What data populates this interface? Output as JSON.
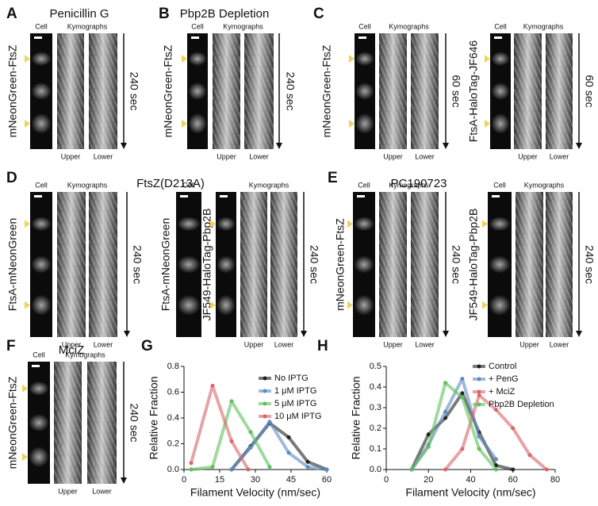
{
  "panels": [
    {
      "letter": "A",
      "title": "Penicillin G",
      "subpanels": [
        {
          "labels": [
            "mNeonGreen-FtsZ"
          ],
          "cell": "Cell",
          "kymographs": "Kymographs",
          "upper": "Upper",
          "lower": "Lower",
          "time": "240 sec"
        }
      ]
    },
    {
      "letter": "B",
      "title": "Pbp2B Depletion",
      "subpanels": [
        {
          "labels": [
            "mNeonGreen-FtsZ"
          ],
          "cell": "Cell",
          "kymographs": "Kymographs",
          "upper": "Upper",
          "lower": "Lower",
          "time": "240 sec"
        }
      ]
    },
    {
      "letter": "C",
      "subpanels": [
        {
          "labels": [
            "mNeonGreen-FtsZ"
          ],
          "cell": "Cell",
          "kymographs": "Kymographs",
          "upper": "Upper",
          "lower": "Lower",
          "time": "60 sec"
        },
        {
          "labels": [
            "FtsA-HaloTag-JF646"
          ],
          "cell": "Cell",
          "kymographs": "Kymographs",
          "upper": "Upper",
          "lower": "Lower",
          "time": "60 sec"
        }
      ]
    },
    {
      "letter": "D",
      "title": "FtsZ(D213A)",
      "subpanels": [
        {
          "labels": [
            "FtsA-mNeonGreen"
          ],
          "cell": "Cell",
          "kymographs": "Kymographs",
          "upper": "Upper",
          "lower": "Lower",
          "time": "240 sec"
        },
        {
          "labels": [
            "FtsA-mNeonGreen",
            "JF549-HaloTag-Pbp2B"
          ],
          "cell": "Cell",
          "kymographs": "Kymographs",
          "upper": "Upper",
          "lower": "Lower",
          "time": "240 sec"
        }
      ]
    },
    {
      "letter": "E",
      "title": "PC190723",
      "subpanels": [
        {
          "labels": [
            "mNeonGreen-FtsZ"
          ],
          "cell": "Cell",
          "kymographs": "Kymographs",
          "upper": "Upper",
          "lower": "Lower",
          "time": "240 sec"
        },
        {
          "labels": [
            "JF549-HaloTag-Pbp2B"
          ],
          "cell": "Cell",
          "kymographs": "Kymographs",
          "upper": "Upper",
          "lower": "Lower",
          "time": "240 sec"
        }
      ]
    },
    {
      "letter": "F",
      "title": "MciZ",
      "subpanels": [
        {
          "labels": [
            "mNeonGreen-FtsZ"
          ],
          "cell": "Cell",
          "kymographs": "Kymographs",
          "upper": "Upper",
          "lower": "Lower",
          "time": "240 sec"
        }
      ]
    }
  ],
  "chart_data": [
    {
      "type": "line",
      "panel_letter": "G",
      "xlabel": "Filament Velocity (nm/sec)",
      "ylabel": "Relative Fraction",
      "xlim": [
        0,
        60
      ],
      "xticks": [
        0,
        15,
        30,
        45,
        60
      ],
      "ylim": [
        0,
        0.8
      ],
      "yticks": [
        {
          "value": 0,
          "label": "0.0"
        },
        0.2,
        0.4,
        0.6,
        0.8
      ],
      "series": [
        {
          "name": "No IPTG",
          "color": "#222222",
          "x": [
            20,
            28,
            36,
            44,
            52,
            60
          ],
          "values": [
            0,
            0.18,
            0.36,
            0.25,
            0.06,
            0
          ]
        },
        {
          "name": "1 μM IPTG",
          "color": "#5b8bc4",
          "x": [
            20,
            28,
            36,
            44,
            52,
            60
          ],
          "values": [
            0,
            0.17,
            0.37,
            0.13,
            0.02,
            0
          ]
        },
        {
          "name": "5 μM IPTG",
          "color": "#5fbf5a",
          "x": [
            3,
            12,
            20,
            28,
            36
          ],
          "values": [
            0,
            0.02,
            0.53,
            0.29,
            0.02
          ]
        },
        {
          "name": "10 μM IPTG",
          "color": "#d9666b",
          "x": [
            3,
            12,
            20,
            27
          ],
          "values": [
            0.05,
            0.65,
            0.22,
            0
          ]
        }
      ]
    },
    {
      "type": "line",
      "panel_letter": "H",
      "xlabel": "Filament Velocity (nm/sec)",
      "ylabel": "Relative Fraction",
      "xlim": [
        0,
        80
      ],
      "xticks": [
        0,
        20,
        40,
        60,
        80
      ],
      "ylim": [
        0,
        0.5
      ],
      "yticks": [
        {
          "value": 0,
          "label": "0.0"
        },
        0.1,
        0.2,
        0.3,
        0.4,
        0.5
      ],
      "series": [
        {
          "name": "Control",
          "color": "#222222",
          "x": [
            12,
            20,
            28,
            36,
            44,
            52,
            60
          ],
          "values": [
            0,
            0.17,
            0.25,
            0.37,
            0.18,
            0.02,
            0
          ]
        },
        {
          "name": "+ PenG",
          "color": "#5b8bc4",
          "x": [
            12,
            20,
            28,
            36,
            44,
            52
          ],
          "values": [
            0,
            0.12,
            0.28,
            0.44,
            0.16,
            0.05
          ]
        },
        {
          "name": "+ MciZ",
          "color": "#d9666b",
          "x": [
            28,
            36,
            44,
            52,
            60,
            68,
            76
          ],
          "values": [
            0,
            0.1,
            0.36,
            0.29,
            0.2,
            0.07,
            0
          ]
        },
        {
          "name": "Pbp2B Depletion",
          "color": "#5fbf5a",
          "x": [
            12,
            20,
            28,
            36,
            44,
            52
          ],
          "values": [
            0,
            0.11,
            0.42,
            0.35,
            0.1,
            0
          ]
        }
      ]
    }
  ]
}
